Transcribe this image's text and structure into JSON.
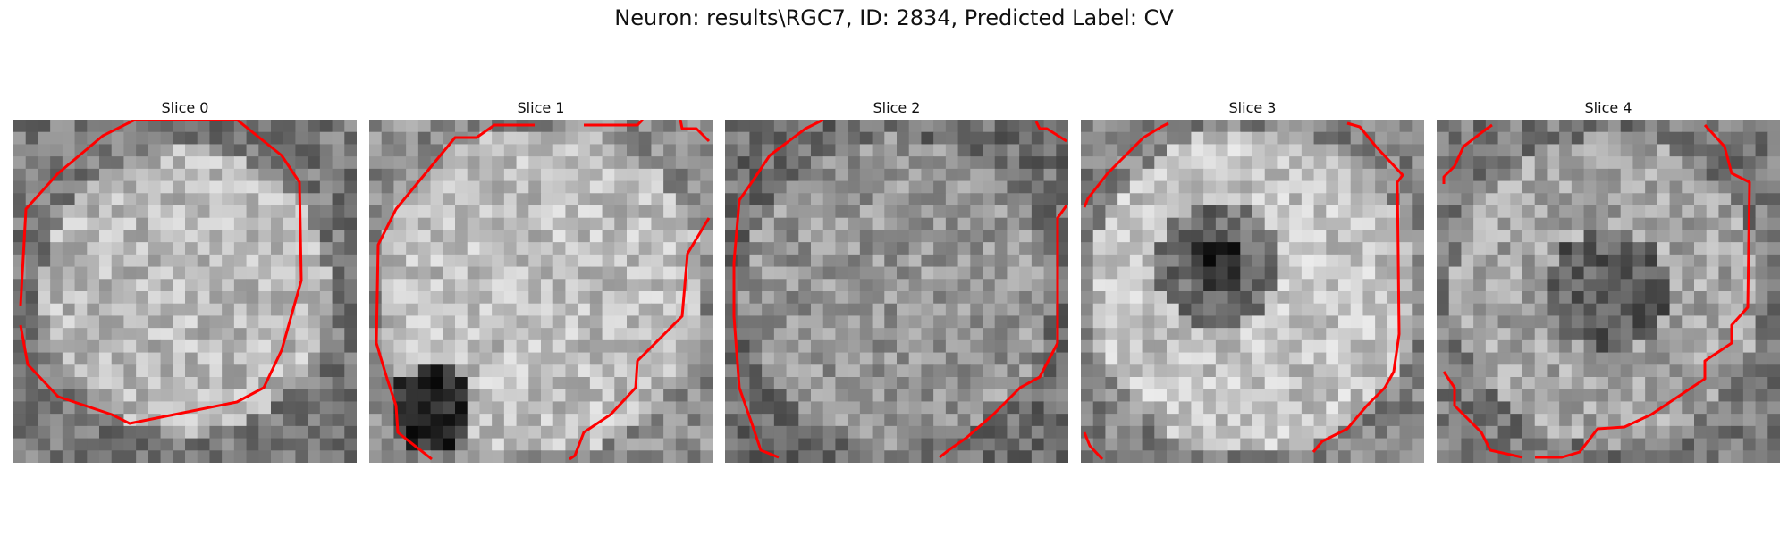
{
  "figure": {
    "title": "Neuron: results\\RGC7, ID: 2834, Predicted Label: CV"
  },
  "contour_color": "#ff0000",
  "slices": [
    {
      "title": "Slice 0",
      "pattern": "bright-disk"
    },
    {
      "title": "Slice 1",
      "pattern": "bright-dark-corner"
    },
    {
      "title": "Slice 2",
      "pattern": "mottled"
    },
    {
      "title": "Slice 3",
      "pattern": "ring-dark-center"
    },
    {
      "title": "Slice 4",
      "pattern": "mottled-ring"
    }
  ]
}
